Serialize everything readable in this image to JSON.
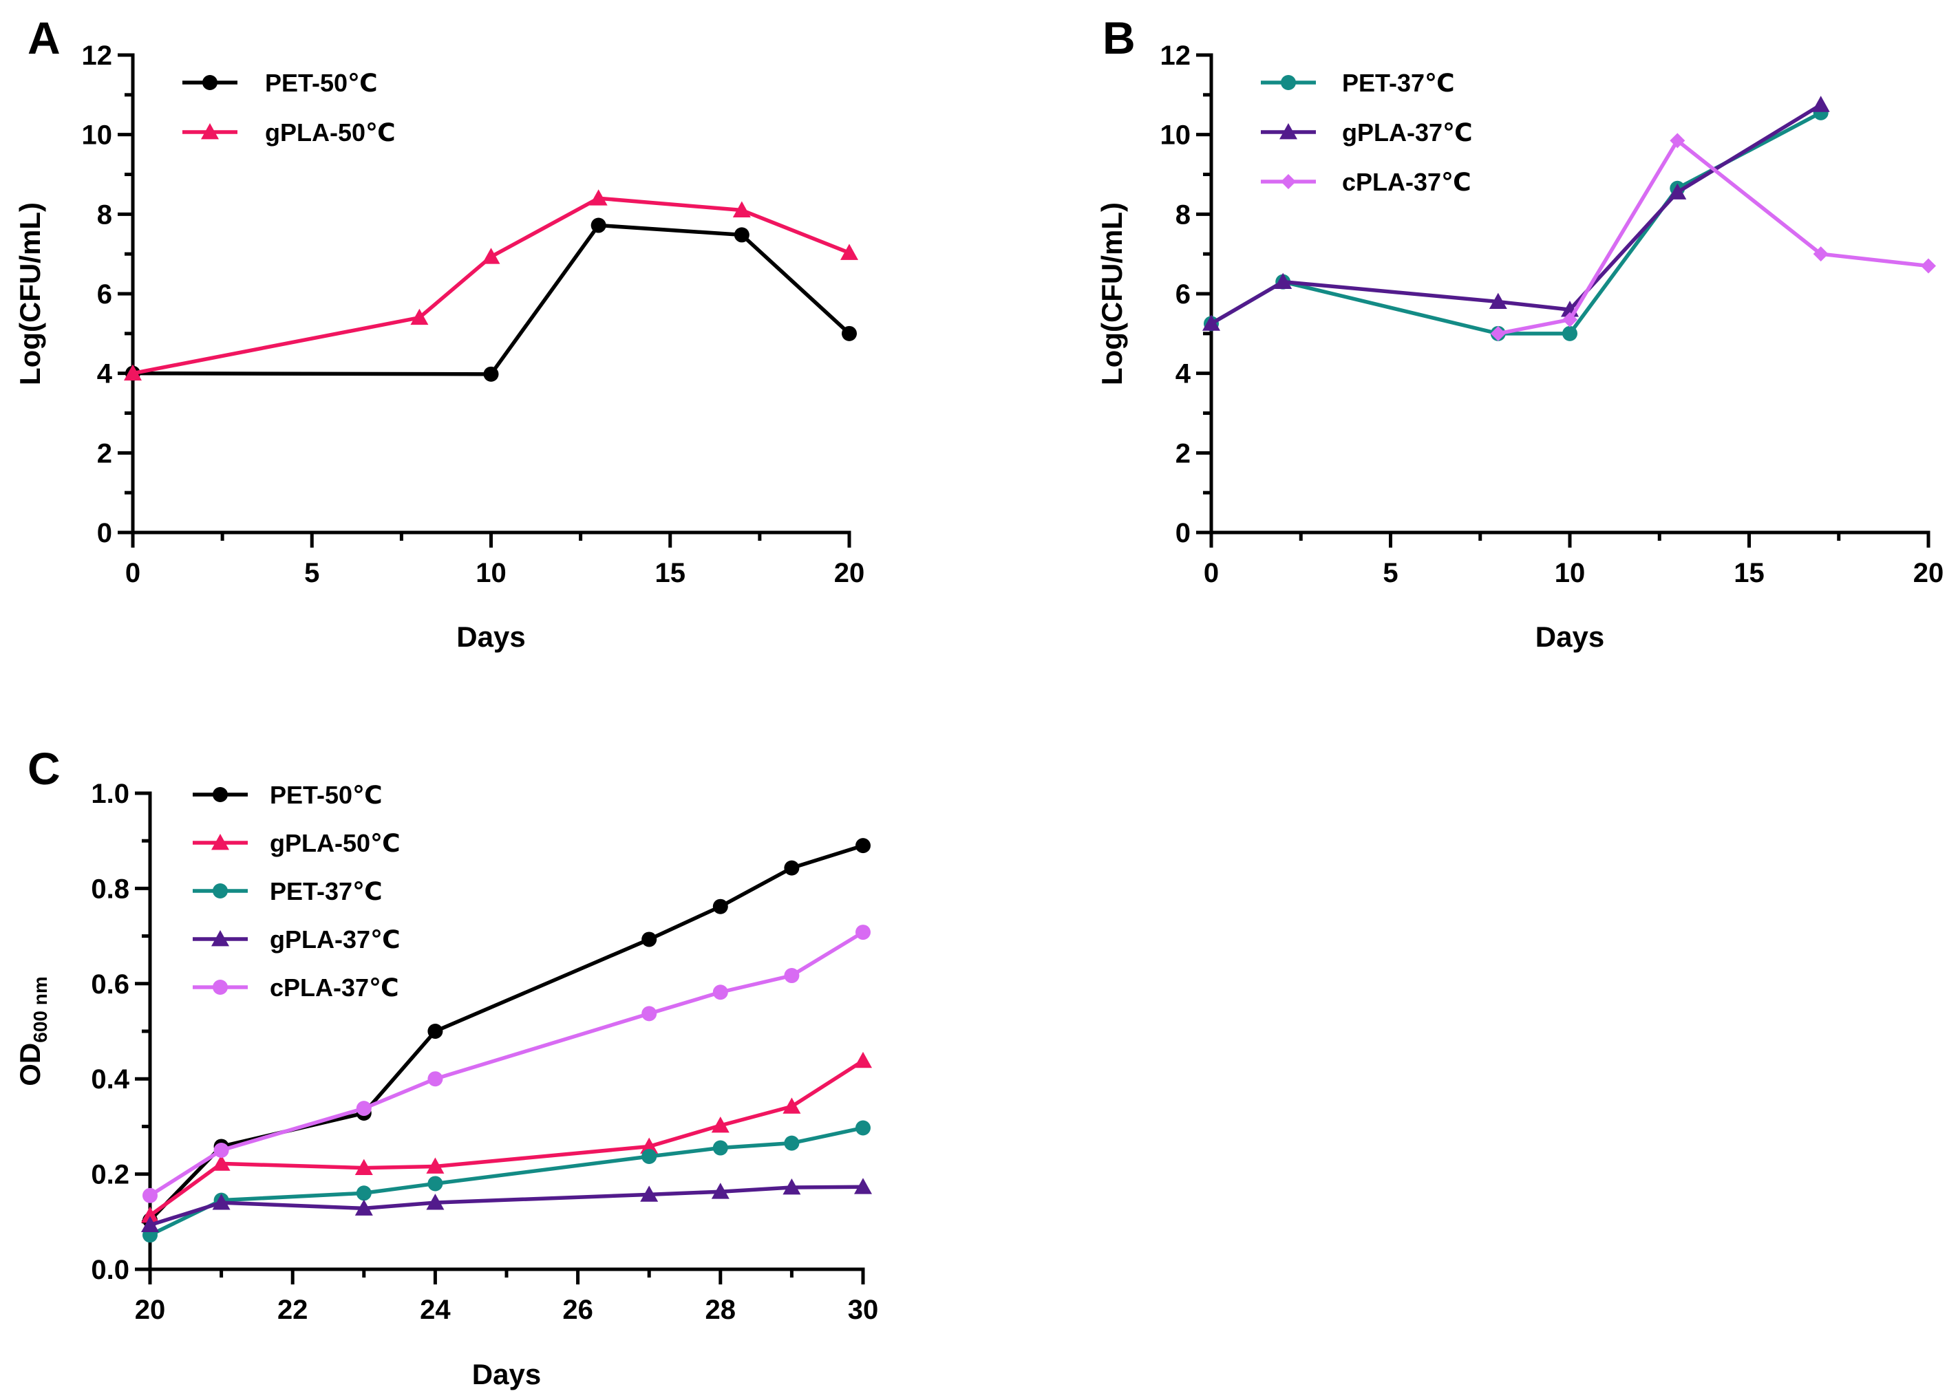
{
  "colors": {
    "black": "#000000",
    "pink": "#F0155F",
    "teal": "#138B85",
    "purple": "#521B8C",
    "violet": "#D86BF3"
  },
  "chart_data": [
    {
      "type": "line",
      "panel": "A",
      "xlabel": "Days",
      "ylabel": "Log(CFU/mL)",
      "xlim": [
        0,
        20
      ],
      "ylim": [
        0,
        12
      ],
      "xticks": [
        0,
        5,
        10,
        15,
        20
      ],
      "xtick_labels": [
        "0",
        "5",
        "10",
        "15",
        "20"
      ],
      "yticks": [
        0,
        2,
        4,
        6,
        8,
        10,
        12
      ],
      "ytick_labels": [
        "0",
        "2",
        "4",
        "6",
        "8",
        "10",
        "12"
      ],
      "legend": "top-left",
      "series": [
        {
          "name": "PET-50℃",
          "color": "#000000",
          "marker": "circle",
          "x": [
            0,
            10,
            13,
            17,
            20
          ],
          "y": [
            4.0,
            3.98,
            7.72,
            7.48,
            5.0
          ]
        },
        {
          "name": "gPLA-50℃",
          "color": "#F0155F",
          "marker": "triangle",
          "x": [
            0,
            8,
            10,
            13,
            17,
            20
          ],
          "y": [
            4.0,
            5.4,
            6.93,
            8.4,
            8.1,
            7.03
          ]
        }
      ]
    },
    {
      "type": "line",
      "panel": "B",
      "xlabel": "Days",
      "ylabel": "Log(CFU/mL)",
      "xlim": [
        0,
        20
      ],
      "ylim": [
        0,
        12
      ],
      "xticks": [
        0,
        5,
        10,
        15,
        20
      ],
      "xtick_labels": [
        "0",
        "5",
        "10",
        "15",
        "20"
      ],
      "yticks": [
        0,
        2,
        4,
        6,
        8,
        10,
        12
      ],
      "ytick_labels": [
        "0",
        "2",
        "4",
        "6",
        "8",
        "10",
        "12"
      ],
      "legend": "top-left",
      "series": [
        {
          "name": "PET-37℃",
          "color": "#138B85",
          "marker": "circle",
          "x": [
            0,
            2,
            8,
            10,
            13,
            17
          ],
          "y": [
            5.25,
            6.3,
            5.0,
            5.0,
            8.65,
            10.55
          ]
        },
        {
          "name": "gPLA-37℃",
          "color": "#521B8C",
          "marker": "triangle",
          "x": [
            0,
            2,
            8,
            10,
            13,
            17
          ],
          "y": [
            5.25,
            6.3,
            5.8,
            5.6,
            8.55,
            10.75
          ]
        },
        {
          "name": "cPLA-37℃",
          "color": "#D86BF3",
          "marker": "diamond",
          "x": [
            8,
            10,
            13,
            17,
            20
          ],
          "y": [
            5.0,
            5.35,
            9.85,
            7.0,
            6.7
          ]
        }
      ]
    },
    {
      "type": "line",
      "panel": "C",
      "xlabel": "Days",
      "ylabel_main": "OD",
      "ylabel_sub": "600 nm",
      "xlim": [
        20,
        30
      ],
      "ylim": [
        0,
        1.0
      ],
      "xticks": [
        20,
        22,
        24,
        26,
        28,
        30
      ],
      "xtick_labels": [
        "20",
        "22",
        "24",
        "26",
        "28",
        "30"
      ],
      "yticks": [
        0,
        0.2,
        0.4,
        0.6,
        0.8,
        1.0
      ],
      "ytick_labels": [
        "0.0",
        "0.2",
        "0.4",
        "0.6",
        "0.8",
        "1.0"
      ],
      "legend": "top-left",
      "series": [
        {
          "name": "PET-50℃",
          "color": "#000000",
          "marker": "circle",
          "x": [
            20,
            21,
            23,
            24,
            27,
            28,
            29,
            30
          ],
          "y": [
            0.103,
            0.258,
            0.328,
            0.5,
            0.693,
            0.762,
            0.843,
            0.89
          ]
        },
        {
          "name": "gPLA-50℃",
          "color": "#F0155F",
          "marker": "triangle",
          "x": [
            20,
            21,
            23,
            24,
            27,
            28,
            29,
            30
          ],
          "y": [
            0.113,
            0.222,
            0.213,
            0.216,
            0.258,
            0.302,
            0.342,
            0.438
          ]
        },
        {
          "name": "PET-37℃",
          "color": "#138B85",
          "marker": "circle",
          "x": [
            20,
            21,
            23,
            24,
            27,
            28,
            29,
            30
          ],
          "y": [
            0.072,
            0.145,
            0.16,
            0.18,
            0.237,
            0.255,
            0.265,
            0.297
          ]
        },
        {
          "name": "gPLA-37℃",
          "color": "#521B8C",
          "marker": "triangle",
          "x": [
            20,
            21,
            23,
            24,
            27,
            28,
            29,
            30
          ],
          "y": [
            0.093,
            0.14,
            0.128,
            0.14,
            0.157,
            0.163,
            0.172,
            0.173
          ]
        },
        {
          "name": "cPLA-37℃",
          "color": "#D86BF3",
          "marker": "circle",
          "x": [
            20,
            21,
            23,
            24,
            27,
            28,
            29,
            30
          ],
          "y": [
            0.155,
            0.25,
            0.338,
            0.4,
            0.537,
            0.582,
            0.617,
            0.708
          ]
        }
      ]
    }
  ]
}
